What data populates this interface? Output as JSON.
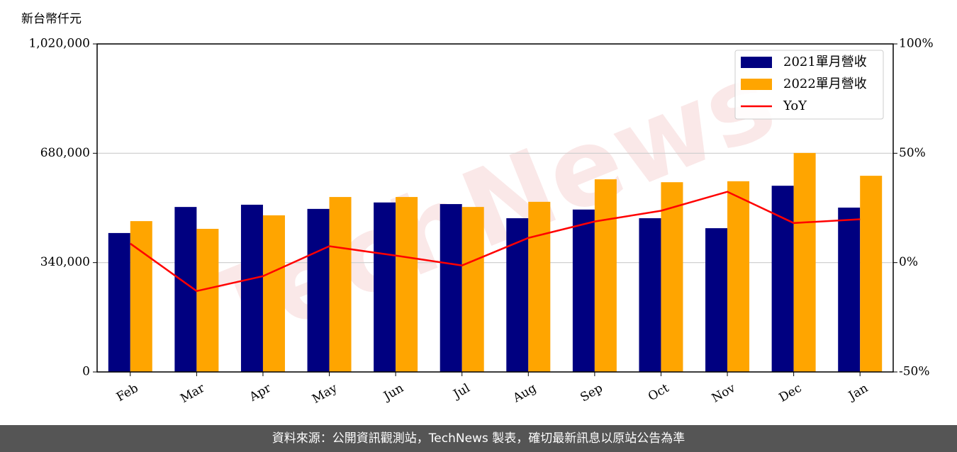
{
  "chart_data": {
    "type": "bar",
    "y_label": "新台幣仟元",
    "watermark": "TechNews",
    "categories": [
      "Feb",
      "Mar",
      "Apr",
      "May",
      "Jun",
      "Jul",
      "Aug",
      "Sep",
      "Oct",
      "Nov",
      "Dec",
      "Jan"
    ],
    "series": [
      {
        "name": "2021單月營收",
        "color": "#000080",
        "values": [
          432000,
          513000,
          520000,
          507000,
          527000,
          522000,
          478000,
          505000,
          478000,
          447000,
          579000,
          511000
        ]
      },
      {
        "name": "2022單月營收",
        "color": "#ffa500",
        "values": [
          469000,
          445000,
          487000,
          544000,
          544000,
          513000,
          529000,
          599000,
          590000,
          593000,
          681000,
          610000
        ]
      },
      {
        "name": "YoY",
        "color": "#ff0000",
        "type": "line",
        "axis": "y2",
        "values": [
          8.7,
          -13.0,
          -6.2,
          7.5,
          3.2,
          -1.3,
          11.3,
          18.8,
          23.7,
          32.4,
          18.1,
          19.8
        ]
      }
    ],
    "ylim": [
      0,
      1020000
    ],
    "yticks": [
      0,
      {
        "value": 340000,
        "label": "340,000"
      },
      {
        "value": 680000,
        "label": "680,000"
      },
      {
        "value": 1020000,
        "label": "1,020,000"
      }
    ],
    "y2lim": [
      -50,
      100
    ],
    "y2ticks": [
      {
        "value": -50,
        "label": "-50%"
      },
      {
        "value": 0,
        "label": "0%"
      },
      {
        "value": 50,
        "label": "50%"
      },
      {
        "value": 100,
        "label": "100%"
      }
    ],
    "grid": true,
    "legend": "upper right",
    "footer": "資料來源：公開資訊觀測站，TechNews 製表，確切最新訊息以原站公告為準"
  }
}
